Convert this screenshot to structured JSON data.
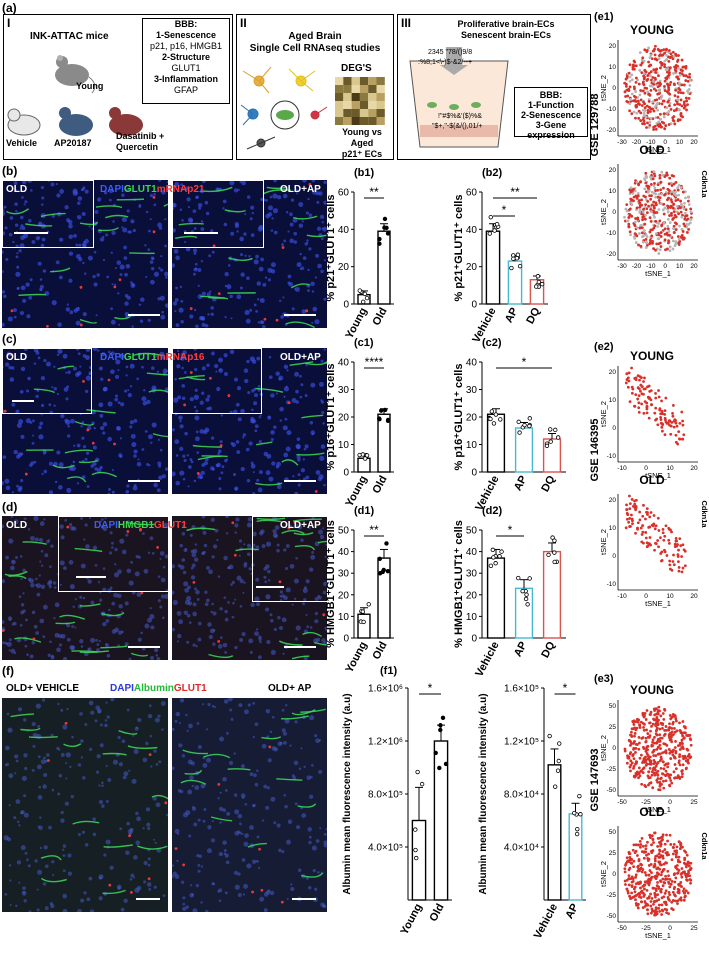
{
  "panel_a": {
    "letter": "(a)",
    "box1": {
      "roman": "I",
      "title": "INK-ATTAC mice",
      "young": "Young",
      "vehicle": "Vehicle",
      "ap": "AP20187",
      "dq": "Dasatinib + Quercetin",
      "bbb_title": "BBB:",
      "bbb_lines": [
        "1-Senescence",
        "p21, p16, HMGB1",
        "2-Structure",
        "GLUT1",
        "3-Inflammation",
        "GFAP"
      ]
    },
    "box2": {
      "roman": "II",
      "title1": "Aged Brain",
      "title2": "Single Cell RNAseq studies",
      "degs": "DEG'S",
      "compare1": "Young vs Aged",
      "compare2": "p21⁺ ECs"
    },
    "box3": {
      "roman": "III",
      "title1": "Proliferative brain-ECs",
      "title2": "Senescent brain-ECs",
      "code1": "2345 \"78/()9/8",
      "code2": ":%8;1<\\-)$-&2/--+",
      "code3": "!\"#$%&'($)%&",
      "code4": "\"$+,\"-$(&/(),01/+",
      "bbb_title": "BBB:",
      "bbb_lines": [
        "1-Function",
        "2-Senescence",
        "3-Gene expression"
      ]
    }
  },
  "row_b": {
    "letter": "(b)",
    "left_label": "OLD",
    "right_label": "OLD+AP",
    "stain_dapi": "DAPI",
    "stain_green": "GLUT1",
    "stain_red": "mRNAp21"
  },
  "row_c": {
    "letter": "(c)",
    "left_label": "OLD",
    "right_label": "OLD+AP",
    "stain_dapi": "DAPI",
    "stain_green": "GLUT1",
    "stain_red": "mRNAp16"
  },
  "row_d": {
    "letter": "(d)",
    "left_label": "OLD",
    "right_label": "OLD+AP",
    "stain_dapi": "DAPI",
    "stain_green": "HMGB1",
    "stain_red": "GLUT1"
  },
  "row_f": {
    "letter": "(f)",
    "left_label": "OLD+ VEHICLE",
    "right_label": "OLD+ AP",
    "stain_dapi": "DAPI",
    "stain_green": "Albumin",
    "stain_red": "GLUT1"
  },
  "chart_data": [
    {
      "id": "b1",
      "type": "bar",
      "panel": "(b1)",
      "ylabel": "% p21⁺GLUT1⁺ cells",
      "categories": [
        "Young",
        "Old"
      ],
      "values": [
        5,
        39
      ],
      "errors": [
        2,
        4
      ],
      "ylim": [
        0,
        60
      ],
      "sig": [
        "**"
      ],
      "colors": [
        "#ffffff",
        "#ffffff"
      ]
    },
    {
      "id": "b2",
      "type": "bar",
      "panel": "(b2)",
      "ylabel": "% p21⁺GLUT1⁺ cells",
      "categories": [
        "Vehicle",
        "AP",
        "DQ"
      ],
      "values": [
        39,
        23,
        13
      ],
      "errors": [
        4,
        3,
        2
      ],
      "ylim": [
        0,
        60
      ],
      "sig": [
        "*",
        "**"
      ],
      "colors": [
        "#ffffff",
        "#48b8d0",
        "#d9534f"
      ]
    },
    {
      "id": "c1",
      "type": "bar",
      "panel": "(c1)",
      "ylabel": "% p16⁺GLUT1⁺ cells",
      "categories": [
        "Young",
        "Old"
      ],
      "values": [
        5,
        21
      ],
      "errors": [
        1,
        2
      ],
      "ylim": [
        0,
        40
      ],
      "sig": [
        "****"
      ],
      "colors": [
        "#ffffff",
        "#ffffff"
      ]
    },
    {
      "id": "c2",
      "type": "bar",
      "panel": "(c2)",
      "ylabel": "% p16⁺GLUT1⁺ cells",
      "categories": [
        "Vehicle",
        "AP",
        "DQ"
      ],
      "values": [
        21,
        16,
        12
      ],
      "errors": [
        2,
        2,
        2
      ],
      "ylim": [
        0,
        40
      ],
      "sig": [
        "*"
      ],
      "colors": [
        "#ffffff",
        "#48b8d0",
        "#d9534f"
      ]
    },
    {
      "id": "d1",
      "type": "bar",
      "panel": "(d1)",
      "ylabel": "% HMGB1⁺GLUT1⁺ cells",
      "categories": [
        "Young",
        "Old"
      ],
      "values": [
        11,
        37
      ],
      "errors": [
        3,
        4
      ],
      "ylim": [
        0,
        50
      ],
      "sig": [
        "**"
      ],
      "colors": [
        "#ffffff",
        "#ffffff"
      ]
    },
    {
      "id": "d2",
      "type": "bar",
      "panel": "(d2)",
      "ylabel": "% HMGB1⁺GLUT1⁺ cells",
      "categories": [
        "Vehicle",
        "AP",
        "DQ"
      ],
      "values": [
        37,
        23,
        40
      ],
      "errors": [
        4,
        4,
        4
      ],
      "ylim": [
        0,
        50
      ],
      "sig": [
        "*"
      ],
      "colors": [
        "#ffffff",
        "#48b8d0",
        "#d9534f"
      ]
    },
    {
      "id": "f1",
      "type": "bar",
      "panel": "(f1)",
      "ylabel": "Albumin mean fluorescence intensity (a.u)",
      "categories": [
        "Young",
        "Old"
      ],
      "values": [
        600000,
        1200000
      ],
      "errors": [
        250000,
        120000
      ],
      "ylim": [
        0,
        1600000
      ],
      "ticks": [
        "4.0×10⁵",
        "8.0×10⁵",
        "1.2×10⁶",
        "1.6×10⁶"
      ],
      "sig": [
        "*"
      ],
      "colors": [
        "#ffffff",
        "#ffffff"
      ]
    },
    {
      "id": "f2",
      "type": "bar",
      "panel": "",
      "ylabel": "Albumin mean fluorescence intensity (a.u)",
      "categories": [
        "Vehicle",
        "AP"
      ],
      "values": [
        102000,
        65000
      ],
      "errors": [
        12000,
        8000
      ],
      "ylim": [
        0,
        160000
      ],
      "ticks": [
        "4.0×10⁴",
        "8.0×10⁴",
        "1.2×10⁵",
        "1.6×10⁵"
      ],
      "sig": [
        "*"
      ],
      "colors": [
        "#ffffff",
        "#48b8d0"
      ]
    }
  ],
  "tsne": {
    "e1": {
      "letter": "(e1)",
      "dataset": "GSE 129788",
      "young": "YOUNG",
      "old": "OLD",
      "gene": "Cdkn1a",
      "xlabel": "tSNE_1",
      "ylabel": "tSNE_2",
      "xticks": [
        "-30",
        "-20",
        "-10",
        "0",
        "10",
        "20"
      ],
      "yticks_young": [
        "20",
        "10",
        "0",
        "-10",
        "-20"
      ],
      "yticks_old": [
        "20",
        "10",
        "0",
        "-10",
        "-20"
      ]
    },
    "e2": {
      "letter": "(e2)",
      "dataset": "GSE 146395",
      "young": "YOUNG",
      "old": "OLD",
      "gene": "Cdkn1a",
      "xlabel": "tSNE_1",
      "ylabel": "tSNE_2",
      "xticks": [
        "-10",
        "0",
        "10",
        "20"
      ],
      "yticks_young": [
        "20",
        "10",
        "0",
        "-10"
      ],
      "yticks_old": [
        "20",
        "10",
        "0",
        "-10"
      ]
    },
    "e3": {
      "letter": "(e3)",
      "dataset": "GSE 147693",
      "young": "YOUNG",
      "old": "OLD",
      "gene": "Cdkn1a",
      "xlabel": "tSNE_1",
      "ylabel": "tSNE_2",
      "xticks": [
        "-50",
        "-25",
        "0",
        "25"
      ],
      "yticks_young": [
        "50",
        "25",
        "0",
        "-25",
        "-50"
      ],
      "yticks_old": [
        "50",
        "25",
        "0",
        "-25",
        "-50"
      ]
    }
  }
}
